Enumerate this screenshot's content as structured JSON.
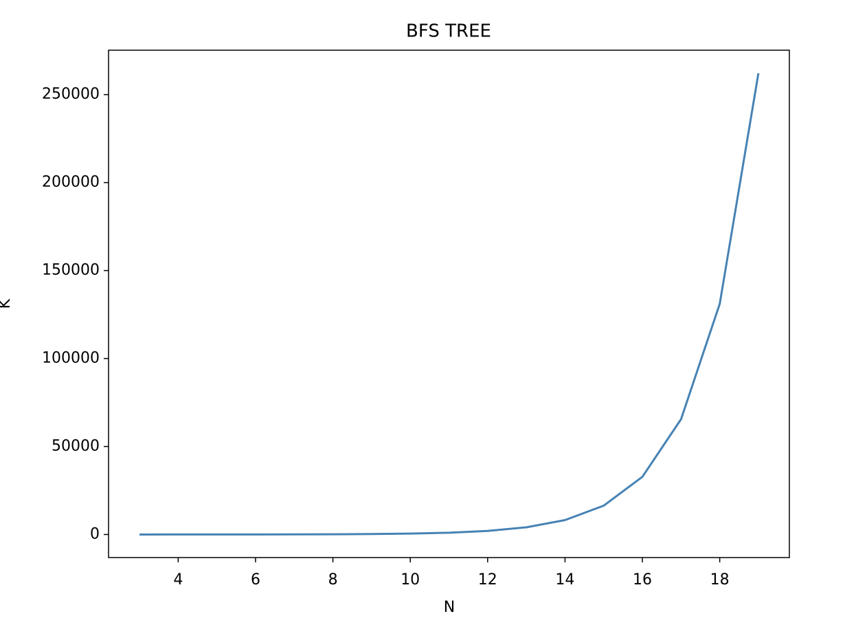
{
  "chart_data": {
    "type": "line",
    "title": "BFS TREE",
    "x_label": "N",
    "y_label": "K",
    "x": [
      3,
      4,
      5,
      6,
      7,
      8,
      9,
      10,
      11,
      12,
      13,
      14,
      15,
      16,
      17,
      18,
      19
    ],
    "series": [
      {
        "name": "K",
        "color": "#4682b4",
        "values": [
          4,
          8,
          16,
          32,
          64,
          128,
          256,
          512,
          1024,
          2048,
          4096,
          8192,
          16384,
          32768,
          65536,
          131072,
          262144
        ]
      }
    ],
    "xlim": [
      2.2,
      19.8
    ],
    "xticks": [
      4,
      6,
      8,
      10,
      12,
      14,
      16,
      18
    ],
    "ylim": [
      -13107,
      275251
    ],
    "yticks": [
      0,
      50000,
      100000,
      150000,
      200000,
      250000
    ],
    "grid": false
  }
}
